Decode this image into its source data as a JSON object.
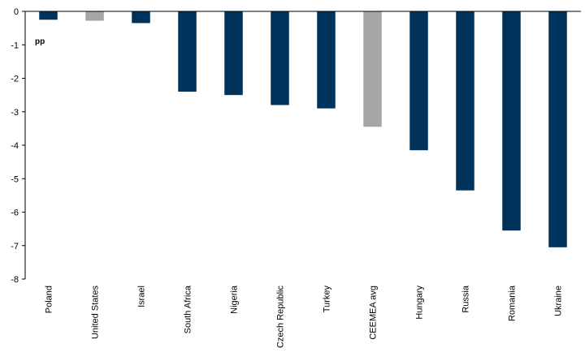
{
  "chart_data": {
    "type": "bar",
    "title": "",
    "xlabel": "",
    "ylabel": "",
    "unit_label": "pp",
    "ylim": [
      -8,
      0
    ],
    "yticks": [
      "0",
      "-1",
      "-2",
      "-3",
      "-4",
      "-5",
      "-6",
      "-7",
      "-8"
    ],
    "grid": false,
    "categories": [
      "Poland",
      "United States",
      "Israel",
      "South Africa",
      "Nigeria",
      "Czech Republic",
      "Turkey",
      "CEEMEA avg",
      "Hungary",
      "Russia",
      "Romania",
      "Ukraine"
    ],
    "values": [
      -0.25,
      -0.28,
      -0.35,
      -2.4,
      -2.5,
      -2.8,
      -2.9,
      -3.45,
      -4.15,
      -5.35,
      -6.55,
      -7.05
    ],
    "highlight": [
      false,
      true,
      false,
      false,
      false,
      false,
      false,
      true,
      false,
      false,
      false,
      false
    ],
    "colors": {
      "bar": "#00335c",
      "highlight": "#a6a6a6",
      "axis": "#000000"
    }
  }
}
